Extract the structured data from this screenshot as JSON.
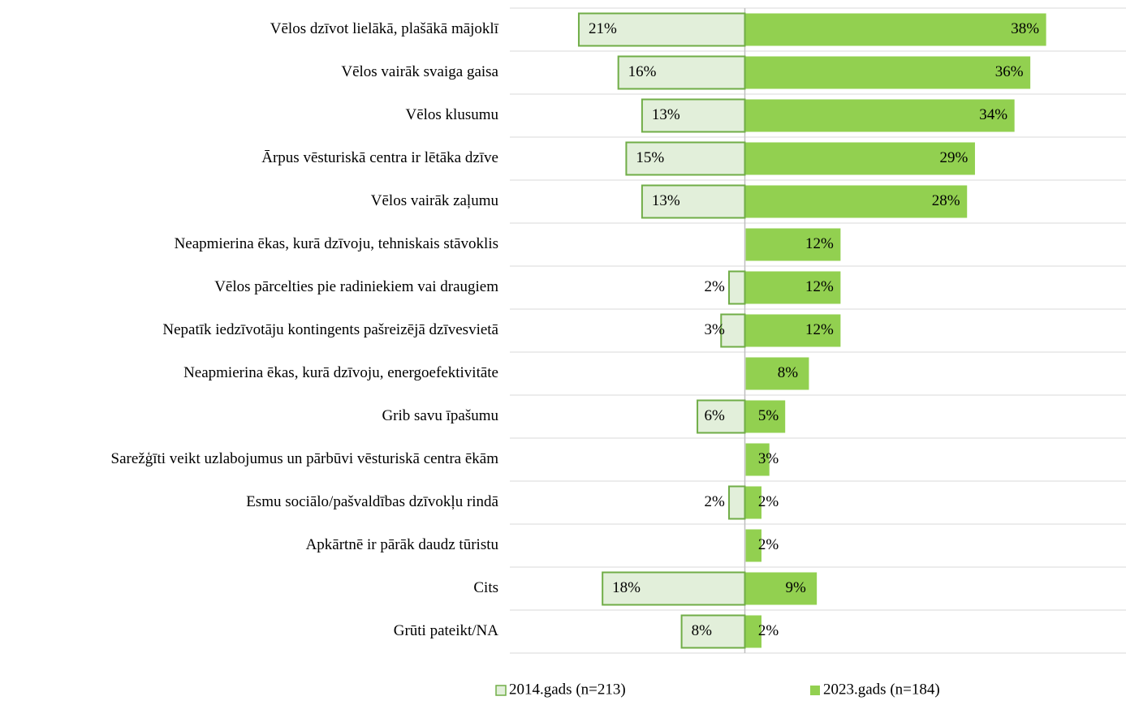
{
  "chart_data": {
    "type": "diverging_bar",
    "categories": [
      "Vēlos dzīvot lielākā, plašākā mājoklī",
      "Vēlos vairāk svaiga gaisa",
      "Vēlos klusumu",
      "Ārpus vēsturiskā centra ir lētāka dzīve",
      "Vēlos vairāk zaļumu",
      "Neapmierina ēkas, kurā dzīvoju, tehniskais stāvoklis",
      "Vēlos pārcelties pie radiniekiem vai draugiem",
      "Nepatīk iedzīvotāju kontingents pašreizējā dzīvesvietā",
      "Neapmierina ēkas, kurā dzīvoju, energoefektivitāte",
      "Grib savu īpašumu",
      "Sarežģīti veikt uzlabojumus un pārbūvi vēsturiskā centra ēkām",
      "Esmu sociālo/pašvaldības dzīvokļu rindā",
      "Apkārtnē ir pārāk daudz tūristu",
      "Cits",
      "Grūti pateikt/NA"
    ],
    "series": [
      {
        "name": "2014.gads (n=213)",
        "color": "#e2efda",
        "stroke": "#70ad47",
        "values": [
          21,
          16,
          13,
          15,
          13,
          null,
          2,
          3,
          null,
          6,
          null,
          2,
          null,
          18,
          8
        ],
        "value_labels": [
          "21%",
          "16%",
          "13%",
          "15%",
          "13%",
          null,
          "2%",
          "3%",
          null,
          "6%",
          null,
          "2%",
          null,
          "18%",
          "8%"
        ]
      },
      {
        "name": "2023.gads (n=184)",
        "color": "#92d050",
        "values": [
          38,
          36,
          34,
          29,
          28,
          12,
          12,
          12,
          8,
          5,
          3,
          2,
          2,
          9,
          2
        ],
        "value_labels": [
          "38%",
          "36%",
          "34%",
          "29%",
          "28%",
          "12%",
          "12%",
          "12%",
          "8%",
          "5%",
          "3%",
          "2%",
          "2%",
          "9%",
          "2%"
        ]
      }
    ],
    "grid": true
  }
}
